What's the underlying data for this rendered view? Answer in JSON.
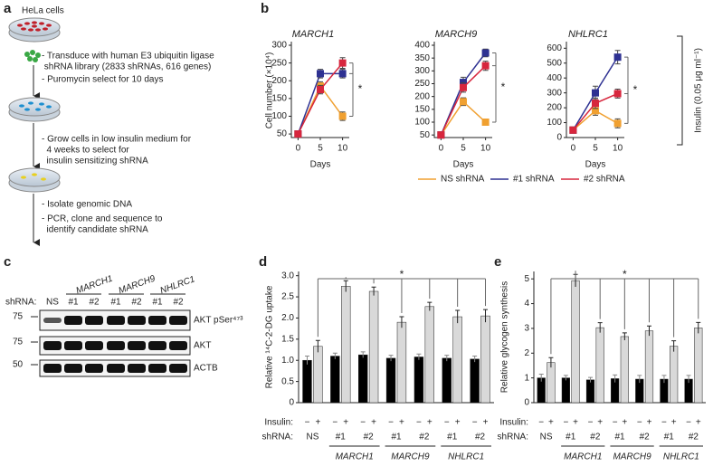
{
  "panel_a": {
    "label": "a",
    "cells": "HeLa cells",
    "steps": [
      [
        "- Transduce with human E3 ubiquitin ligase",
        " shRNA library (2833 shRNAs, 616 genes)"
      ],
      [
        "- Puromycin select for 10 days"
      ],
      [
        "- Grow cells in low insulin medium for",
        "  4 weeks to select for",
        "  insulin sensitizing shRNA"
      ],
      [
        "- Isolate genomic DNA"
      ],
      [
        "- PCR, clone and sequence to",
        "  identify candidate shRNA"
      ]
    ]
  },
  "panel_b": {
    "label": "b",
    "y_label": "Cell number (×10⁴)",
    "insulin_label": "Insulin (0.05 μg ml⁻¹)"
  },
  "panel_c": {
    "label": "c",
    "shrna_label": "shRNA:",
    "lanes": [
      "NS",
      "#1",
      "#2",
      "#1",
      "#2",
      "#1",
      "#2"
    ],
    "groups": [
      "MARCH1",
      "MARCH9",
      "NHLRC1"
    ],
    "rows": [
      {
        "marker": "75",
        "name": "AKT pSer⁴⁷³"
      },
      {
        "marker": "75",
        "name": "AKT"
      },
      {
        "marker": "50",
        "name": "ACTB"
      }
    ]
  },
  "chart_data": [
    {
      "type": "line",
      "title": "MARCH1",
      "x_label": "Days",
      "x": [
        0,
        5,
        10
      ],
      "xlim": [
        -1.5,
        11.5
      ],
      "xticks": [
        0,
        5,
        10
      ],
      "ylim": [
        40,
        300
      ],
      "yticks": [
        50,
        100,
        150,
        200,
        250,
        300
      ],
      "annotation": "*",
      "series": [
        {
          "name": "NS shRNA",
          "color": "#f0a030",
          "values": [
            50,
            185,
            100
          ],
          "errors": [
            4,
            12,
            12
          ]
        },
        {
          "name": "#1 shRNA",
          "color": "#2e3192",
          "values": [
            50,
            220,
            220
          ],
          "errors": [
            4,
            12,
            12
          ]
        },
        {
          "name": "#2 shRNA",
          "color": "#d7263d",
          "values": [
            50,
            175,
            250
          ],
          "errors": [
            4,
            12,
            15
          ]
        }
      ]
    },
    {
      "type": "line",
      "title": "MARCH9",
      "x_label": "Days",
      "x": [
        0,
        5,
        10
      ],
      "xlim": [
        -1.5,
        11.5
      ],
      "xticks": [
        0,
        5,
        10
      ],
      "ylim": [
        40,
        400
      ],
      "yticks": [
        50,
        100,
        150,
        200,
        250,
        300,
        350,
        400
      ],
      "annotation": "*",
      "series": [
        {
          "name": "NS shRNA",
          "color": "#f0a030",
          "values": [
            50,
            180,
            100
          ],
          "errors": [
            4,
            15,
            5
          ]
        },
        {
          "name": "#1 shRNA",
          "color": "#2e3192",
          "values": [
            50,
            255,
            370
          ],
          "errors": [
            4,
            20,
            15
          ]
        },
        {
          "name": "#2 shRNA",
          "color": "#d7263d",
          "values": [
            50,
            235,
            320
          ],
          "errors": [
            4,
            18,
            18
          ]
        }
      ]
    },
    {
      "type": "line",
      "title": "NHLRC1",
      "x_label": "Days",
      "x": [
        0,
        5,
        10
      ],
      "xlim": [
        -1.5,
        11.5
      ],
      "xticks": [
        0,
        5,
        10
      ],
      "ylim": [
        0,
        620
      ],
      "yticks": [
        0,
        100,
        200,
        300,
        400,
        500,
        600
      ],
      "annotation": "*",
      "series": [
        {
          "name": "NS shRNA",
          "color": "#f0a030",
          "values": [
            50,
            180,
            95
          ],
          "errors": [
            8,
            30,
            30
          ]
        },
        {
          "name": "#1 shRNA",
          "color": "#2e3192",
          "values": [
            50,
            300,
            540
          ],
          "errors": [
            8,
            45,
            45
          ]
        },
        {
          "name": "#2 shRNA",
          "color": "#d7263d",
          "values": [
            50,
            230,
            295
          ],
          "errors": [
            8,
            35,
            30
          ]
        }
      ]
    },
    {
      "type": "bar",
      "panel": "d",
      "y_label": "Relative ¹⁴C-2-DG uptake",
      "row_insulin": "Insulin:",
      "row_shrna": "shRNA:",
      "categories": [
        "NS",
        "#1",
        "#2",
        "#1",
        "#2",
        "#1",
        "#2"
      ],
      "groups": [
        "MARCH1",
        "MARCH9",
        "NHLRC1"
      ],
      "ylim": [
        0,
        3.1
      ],
      "yticks": [
        0,
        0.5,
        {
          "value": 1,
          "label": "1.0"
        },
        1.5,
        {
          "value": 2,
          "label": "2.0"
        },
        2.5,
        {
          "value": 3,
          "label": "3.0"
        }
      ],
      "annotation": "*",
      "series": [
        {
          "name": "−",
          "color": "#000000",
          "values": [
            1.0,
            1.1,
            1.13,
            1.05,
            1.08,
            1.05,
            1.03
          ],
          "errors": [
            0.1,
            0.07,
            0.07,
            0.07,
            0.07,
            0.07,
            0.07
          ]
        },
        {
          "name": "+",
          "color": "#d9d9d9",
          "values": [
            1.33,
            2.75,
            2.63,
            1.9,
            2.27,
            2.03,
            2.05
          ],
          "errors": [
            0.14,
            0.13,
            0.1,
            0.13,
            0.1,
            0.15,
            0.15
          ]
        }
      ]
    },
    {
      "type": "bar",
      "panel": "e",
      "y_label": "Relative glycogen synthesis",
      "row_insulin": "Insulin:",
      "row_shrna": "shRNA:",
      "categories": [
        "NS",
        "#1",
        "#2",
        "#1",
        "#2",
        "#1",
        "#2"
      ],
      "groups": [
        "MARCH1",
        "MARCH9",
        "NHLRC1"
      ],
      "ylim": [
        0,
        5.3
      ],
      "yticks": [
        0,
        1,
        2,
        3,
        4,
        5
      ],
      "annotation": "*",
      "series": [
        {
          "name": "−",
          "color": "#000000",
          "values": [
            1.0,
            1.0,
            0.92,
            0.97,
            0.95,
            0.95,
            0.95
          ],
          "errors": [
            0.15,
            0.1,
            0.1,
            0.15,
            0.15,
            0.15,
            0.15
          ]
        },
        {
          "name": "+",
          "color": "#d9d9d9",
          "values": [
            1.62,
            4.93,
            3.03,
            2.67,
            2.9,
            2.28,
            3.02
          ],
          "errors": [
            0.2,
            0.25,
            0.2,
            0.15,
            0.2,
            0.22,
            0.22
          ]
        }
      ]
    }
  ]
}
